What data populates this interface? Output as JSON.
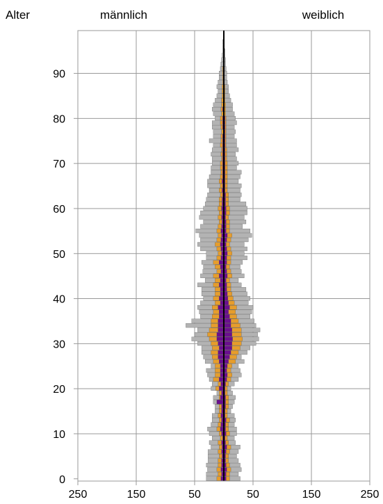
{
  "chart_data": {
    "type": "bar",
    "subtype": "population-pyramid",
    "y_axis_title": "Alter",
    "left_label": "männlich",
    "right_label": "weiblich",
    "y_ticks": [
      "0",
      "10",
      "20",
      "30",
      "40",
      "50",
      "60",
      "70",
      "80",
      "90"
    ],
    "x_ticks": [
      "250",
      "150",
      "50",
      "50",
      "150",
      "250"
    ],
    "ylim": [
      0,
      99
    ],
    "xlim": [
      -250,
      250
    ],
    "grid": true,
    "colors": {
      "outer": "#b3b3b3",
      "middle": "#e69d2c",
      "inner": "#6a0f8e",
      "axis": "#000000",
      "grid": "#999999"
    },
    "series_note": "Three nested series per side (grey total, orange, purple inner); values per age 0–99 in persons",
    "ages": [
      0,
      1,
      2,
      3,
      4,
      5,
      6,
      7,
      8,
      9,
      10,
      11,
      12,
      13,
      14,
      15,
      16,
      17,
      18,
      19,
      20,
      21,
      22,
      23,
      24,
      25,
      26,
      27,
      28,
      29,
      30,
      31,
      32,
      33,
      34,
      35,
      36,
      37,
      38,
      39,
      40,
      41,
      42,
      43,
      44,
      45,
      46,
      47,
      48,
      49,
      50,
      51,
      52,
      53,
      54,
      55,
      56,
      57,
      58,
      59,
      60,
      61,
      62,
      63,
      64,
      65,
      66,
      67,
      68,
      69,
      70,
      71,
      72,
      73,
      74,
      75,
      76,
      77,
      78,
      79,
      80,
      81,
      82,
      83,
      84,
      85,
      86,
      87,
      88,
      89,
      90,
      91,
      92,
      93,
      94,
      95,
      96,
      97,
      98,
      99
    ],
    "male_grey": [
      30,
      30,
      28,
      30,
      27,
      27,
      27,
      22,
      25,
      20,
      25,
      28,
      22,
      20,
      20,
      15,
      15,
      18,
      18,
      12,
      22,
      20,
      25,
      28,
      30,
      22,
      32,
      35,
      38,
      38,
      45,
      55,
      50,
      45,
      65,
      55,
      40,
      42,
      45,
      40,
      35,
      38,
      38,
      45,
      32,
      40,
      36,
      35,
      38,
      30,
      30,
      40,
      45,
      40,
      42,
      48,
      40,
      35,
      42,
      40,
      35,
      32,
      30,
      28,
      25,
      28,
      28,
      25,
      22,
      22,
      20,
      20,
      22,
      20,
      18,
      25,
      18,
      18,
      20,
      20,
      15,
      18,
      20,
      18,
      15,
      12,
      10,
      12,
      10,
      8,
      8,
      6,
      5,
      4,
      3,
      2,
      2,
      2,
      1,
      1
    ],
    "male_orange": [
      12,
      10,
      12,
      10,
      10,
      8,
      10,
      8,
      10,
      6,
      8,
      12,
      10,
      8,
      10,
      8,
      8,
      10,
      8,
      8,
      14,
      10,
      18,
      15,
      15,
      15,
      18,
      20,
      22,
      20,
      22,
      25,
      28,
      25,
      22,
      22,
      20,
      18,
      20,
      15,
      18,
      15,
      15,
      18,
      15,
      18,
      12,
      15,
      18,
      12,
      10,
      12,
      15,
      12,
      10,
      12,
      10,
      8,
      10,
      8,
      10,
      8,
      8,
      6,
      8,
      6,
      8,
      6,
      5,
      6,
      6,
      4,
      5,
      4,
      6,
      5,
      5,
      4,
      5,
      6,
      6,
      4,
      5,
      4,
      4,
      3,
      3,
      3,
      2,
      2,
      2,
      2,
      1,
      1,
      1,
      1,
      1,
      0,
      0,
      0
    ],
    "male_purple": [
      5,
      4,
      5,
      4,
      4,
      3,
      4,
      3,
      4,
      2,
      4,
      6,
      5,
      4,
      5,
      4,
      4,
      12,
      6,
      4,
      8,
      5,
      8,
      6,
      6,
      6,
      8,
      10,
      10,
      8,
      10,
      12,
      12,
      10,
      10,
      10,
      8,
      8,
      10,
      6,
      8,
      6,
      6,
      8,
      6,
      8,
      5,
      6,
      8,
      5,
      4,
      5,
      6,
      5,
      4,
      5,
      4,
      3,
      4,
      3,
      4,
      3,
      3,
      2,
      3,
      2,
      3,
      2,
      2,
      2,
      2,
      2,
      2,
      2,
      2,
      2,
      2,
      1,
      2,
      2,
      2,
      1,
      2,
      1,
      1,
      1,
      1,
      1,
      1,
      1,
      1,
      1,
      0,
      0,
      0,
      0,
      0,
      0,
      0,
      0
    ],
    "female_grey": [
      28,
      25,
      30,
      28,
      25,
      22,
      25,
      28,
      20,
      18,
      22,
      22,
      18,
      20,
      18,
      12,
      15,
      18,
      20,
      15,
      12,
      18,
      25,
      30,
      28,
      25,
      35,
      30,
      40,
      45,
      55,
      60,
      58,
      62,
      55,
      52,
      45,
      48,
      50,
      42,
      45,
      40,
      38,
      30,
      25,
      35,
      30,
      28,
      32,
      40,
      35,
      40,
      35,
      42,
      48,
      45,
      32,
      38,
      35,
      40,
      40,
      38,
      28,
      30,
      28,
      30,
      25,
      28,
      30,
      22,
      25,
      22,
      20,
      25,
      22,
      22,
      18,
      20,
      18,
      22,
      20,
      18,
      15,
      15,
      12,
      10,
      8,
      8,
      6,
      5,
      5,
      4,
      3,
      3,
      2,
      2,
      1,
      1,
      1,
      1
    ],
    "female_orange": [
      10,
      10,
      12,
      10,
      8,
      8,
      10,
      12,
      8,
      6,
      10,
      8,
      8,
      10,
      6,
      6,
      8,
      8,
      8,
      6,
      6,
      8,
      12,
      14,
      12,
      14,
      20,
      22,
      25,
      28,
      30,
      32,
      30,
      30,
      28,
      25,
      22,
      20,
      22,
      18,
      16,
      14,
      12,
      12,
      10,
      14,
      12,
      10,
      12,
      12,
      14,
      12,
      10,
      12,
      14,
      10,
      10,
      10,
      8,
      10,
      10,
      8,
      8,
      8,
      6,
      6,
      6,
      6,
      6,
      6,
      6,
      5,
      5,
      5,
      4,
      4,
      4,
      4,
      4,
      4,
      4,
      3,
      3,
      3,
      2,
      2,
      2,
      2,
      1,
      1,
      1,
      1,
      1,
      1,
      0,
      0,
      0,
      0,
      0,
      0
    ],
    "female_purple": [
      4,
      4,
      5,
      4,
      3,
      3,
      4,
      5,
      3,
      2,
      4,
      3,
      3,
      4,
      2,
      2,
      3,
      3,
      3,
      2,
      2,
      3,
      5,
      6,
      5,
      6,
      8,
      10,
      12,
      14,
      14,
      15,
      14,
      14,
      12,
      12,
      10,
      8,
      10,
      8,
      7,
      6,
      5,
      5,
      4,
      6,
      5,
      4,
      5,
      5,
      6,
      5,
      4,
      5,
      6,
      4,
      4,
      4,
      3,
      4,
      4,
      3,
      3,
      3,
      2,
      2,
      2,
      2,
      2,
      2,
      2,
      2,
      2,
      2,
      2,
      2,
      2,
      2,
      2,
      2,
      2,
      1,
      1,
      1,
      1,
      1,
      1,
      1,
      1,
      0,
      0,
      0,
      0,
      0,
      0,
      0,
      0,
      0,
      0,
      0
    ]
  }
}
